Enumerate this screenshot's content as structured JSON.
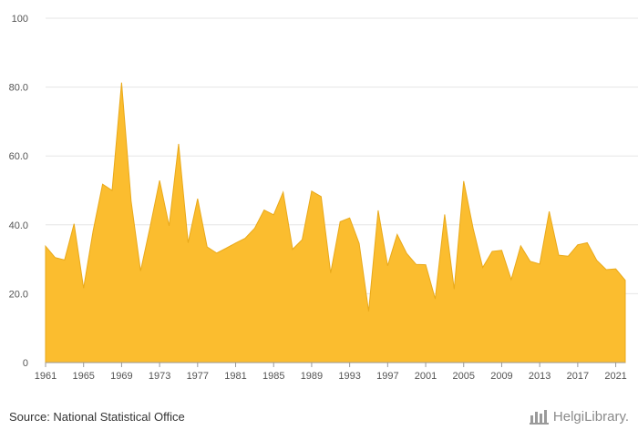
{
  "source_text": "Source: National Statistical Office",
  "brand_text": "HelgiLibrary.",
  "chart_data": {
    "type": "area",
    "title": "",
    "xlabel": "",
    "ylabel": "",
    "ylim": [
      0,
      100
    ],
    "yticks": [
      "0",
      "20.0",
      "40.0",
      "60.0",
      "80.0",
      "100"
    ],
    "xtick_labels": [
      "1961",
      "1965",
      "1969",
      "1973",
      "1977",
      "1981",
      "1985",
      "1989",
      "1993",
      "1997",
      "2001",
      "2005",
      "2009",
      "2013",
      "2017",
      "2021"
    ],
    "grid": true,
    "fill_color": "#fbbd2f",
    "stroke_color": "#e9a91a",
    "x": [
      1961,
      1962,
      1963,
      1964,
      1965,
      1966,
      1967,
      1968,
      1969,
      1970,
      1971,
      1972,
      1973,
      1974,
      1975,
      1976,
      1977,
      1978,
      1979,
      1980,
      1981,
      1982,
      1983,
      1984,
      1985,
      1986,
      1987,
      1988,
      1989,
      1990,
      1991,
      1992,
      1993,
      1994,
      1995,
      1996,
      1997,
      1998,
      1999,
      2000,
      2001,
      2002,
      2003,
      2004,
      2005,
      2006,
      2007,
      2008,
      2009,
      2010,
      2011,
      2012,
      2013,
      2014,
      2015,
      2016,
      2017,
      2018,
      2019,
      2020,
      2021,
      2022
    ],
    "values": [
      33.8,
      30.5,
      29.8,
      40.3,
      21.6,
      38.2,
      51.8,
      50.0,
      81.3,
      46.9,
      26.6,
      39.4,
      52.9,
      39.7,
      63.5,
      34.8,
      47.6,
      33.6,
      31.8,
      33.2,
      34.7,
      36.1,
      39.0,
      44.3,
      42.9,
      49.5,
      32.9,
      35.7,
      49.8,
      48.2,
      26.0,
      40.9,
      42.0,
      34.6,
      14.9,
      44.2,
      28.1,
      37.2,
      31.7,
      28.5,
      28.4,
      18.5,
      43.0,
      21.3,
      52.7,
      38.9,
      27.6,
      32.3,
      32.6,
      24.1,
      33.9,
      29.4,
      28.6,
      43.9,
      31.2,
      30.9,
      34.2,
      34.8,
      29.7,
      27.0,
      27.2,
      23.9
    ]
  }
}
